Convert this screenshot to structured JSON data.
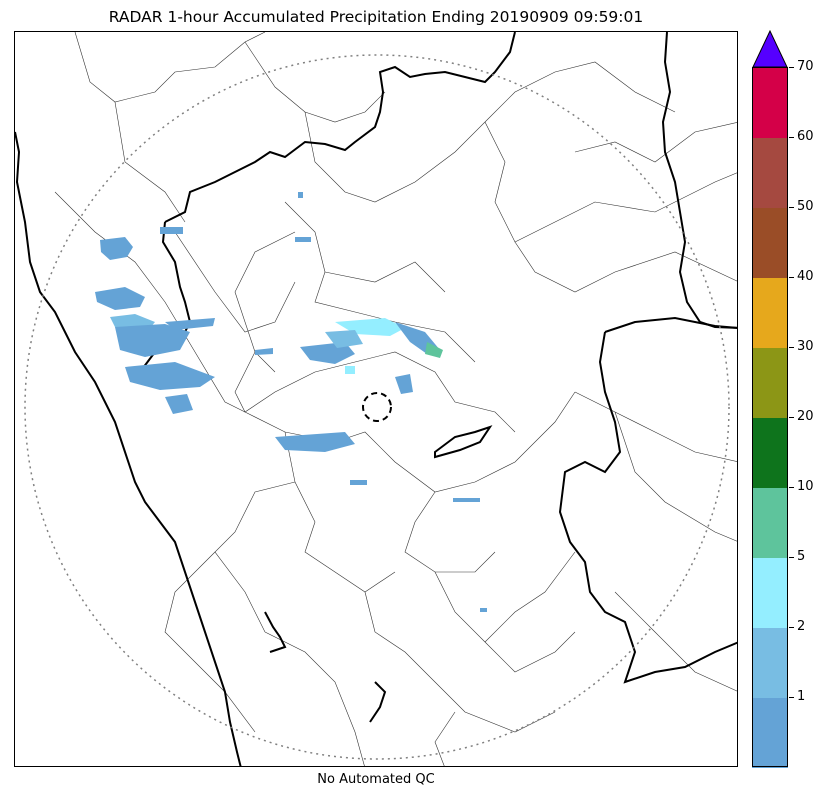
{
  "title": "RADAR 1-hour Accumulated Precipitation Ending 20190909 09:59:01",
  "footer_note": "No Automated QC",
  "colorbar": {
    "extend": "max",
    "extend_color": "#5500ff",
    "tick_labels": [
      "1",
      "2",
      "5",
      "10",
      "20",
      "30",
      "40",
      "50",
      "60",
      "70"
    ],
    "segments": [
      {
        "color": "#64a3d6"
      },
      {
        "color": "#78bde3"
      },
      {
        "color": "#94eeff"
      },
      {
        "color": "#5ec49c"
      },
      {
        "color": "#0e741c"
      },
      {
        "color": "#8c9616"
      },
      {
        "color": "#e6a81c"
      },
      {
        "color": "#9a4d27"
      },
      {
        "color": "#a54940"
      },
      {
        "color": "#d40048"
      }
    ]
  },
  "map": {
    "radar_range_ring_color": "#808080",
    "boundary_color": "#000000",
    "precip_colors": {
      "light": "#64a3d6",
      "medium": "#78bde3",
      "heavier": "#94eeff",
      "strong": "#5ec49c"
    }
  }
}
